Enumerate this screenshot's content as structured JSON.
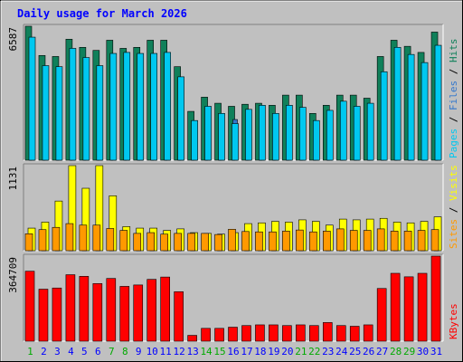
{
  "chart_data": {
    "type": "bar",
    "title": "Daily usage for March 2026",
    "categories": [
      "1",
      "2",
      "3",
      "4",
      "5",
      "6",
      "7",
      "8",
      "9",
      "10",
      "11",
      "12",
      "13",
      "14",
      "15",
      "16",
      "17",
      "18",
      "19",
      "20",
      "21",
      "22",
      "23",
      "24",
      "25",
      "26",
      "27",
      "28",
      "29",
      "30",
      "31"
    ],
    "weekend_days": [
      "1",
      "7",
      "8",
      "14",
      "15",
      "21",
      "22",
      "28",
      "29"
    ],
    "panels": [
      {
        "id": "pages-files-hits",
        "max_label": "6587",
        "ylim": [
          0,
          6587
        ],
        "series": [
          {
            "name": "Hits",
            "color": "#10805a",
            "values": [
              6587,
              5150,
              5100,
              5950,
              5550,
              5400,
              5900,
              5500,
              5550,
              5900,
              5900,
              4600,
              2400,
              3100,
              2800,
              2650,
              2750,
              2800,
              2700,
              3200,
              3200,
              2300,
              2700,
              3200,
              3200,
              3050,
              5100,
              5900,
              5600,
              5300,
              6300
            ]
          },
          {
            "name": "Files",
            "color": "#3377cc",
            "values": [
              4850,
              4150,
              4100,
              4450,
              4350,
              4200,
              4550,
              4300,
              4400,
              4450,
              4550,
              3550,
              1800,
              2200,
              2050,
              2000,
              2100,
              2100,
              2050,
              2300,
              2300,
              1800,
              2050,
              2300,
              2300,
              2200,
              3900,
              4500,
              4250,
              4050,
              4600
            ]
          },
          {
            "name": "Pages",
            "color": "#00c8f0",
            "values": [
              6050,
              4650,
              4600,
              5500,
              5050,
              4650,
              5250,
              5300,
              5250,
              5250,
              5300,
              4100,
              1950,
              2650,
              2300,
              1800,
              2500,
              2700,
              2300,
              2700,
              2600,
              1950,
              2450,
              2900,
              2650,
              2800,
              4350,
              5550,
              5200,
              4800,
              5650
            ]
          }
        ]
      },
      {
        "id": "visits-sites",
        "max_label": "1131",
        "ylim": [
          0,
          1131
        ],
        "series": [
          {
            "name": "Visits",
            "color": "#ffff00",
            "values": [
              300,
              380,
              660,
              1131,
              830,
              1131,
              730,
              320,
              300,
              300,
              270,
              290,
              240,
              230,
              220,
              240,
              360,
              370,
              390,
              380,
              410,
              390,
              340,
              420,
              410,
              420,
              430,
              380,
              370,
              390,
              450
            ]
          },
          {
            "name": "Sites",
            "color": "#ff9900",
            "values": [
              225,
              280,
              310,
              360,
              340,
              340,
              295,
              270,
              230,
              240,
              220,
              230,
              230,
              230,
              215,
              285,
              255,
              250,
              250,
              260,
              275,
              250,
              260,
              290,
              270,
              270,
              290,
              260,
              260,
              270,
              280
            ]
          }
        ]
      },
      {
        "id": "kbytes",
        "max_label": "364709",
        "ylim": [
          0,
          364709
        ],
        "series": [
          {
            "name": "KBytes",
            "color": "#ff0000",
            "values": [
              300000,
              223000,
              228000,
              285000,
              278000,
              247000,
              269000,
              235000,
              241000,
              265000,
              275000,
              212000,
              25000,
              55000,
              55000,
              60000,
              67000,
              70000,
              70000,
              67000,
              70000,
              67000,
              80000,
              67000,
              64000,
              70000,
              226000,
              291000,
              276000,
              291000,
              364709
            ]
          }
        ]
      }
    ],
    "right_labels": [
      {
        "parts": [
          {
            "text": "Pages",
            "color": "#00c8f0"
          },
          {
            "text": " / ",
            "color": "#000000"
          },
          {
            "text": "Files",
            "color": "#3377cc"
          },
          {
            "text": " / ",
            "color": "#000000"
          },
          {
            "text": "Hits",
            "color": "#10805a"
          }
        ]
      },
      {
        "parts": [
          {
            "text": "Sites",
            "color": "#ff9900"
          },
          {
            "text": " / ",
            "color": "#000000"
          },
          {
            "text": "Visits",
            "color": "#ffff00"
          }
        ]
      },
      {
        "parts": [
          {
            "text": "KBytes",
            "color": "#ff0000"
          }
        ]
      }
    ],
    "colors": {
      "background": "#c0c0c0",
      "plot_background": "#c0c0c0",
      "title": "#0000ff",
      "weekday_label": "#0000ff",
      "weekend_label": "#00aa00"
    }
  }
}
